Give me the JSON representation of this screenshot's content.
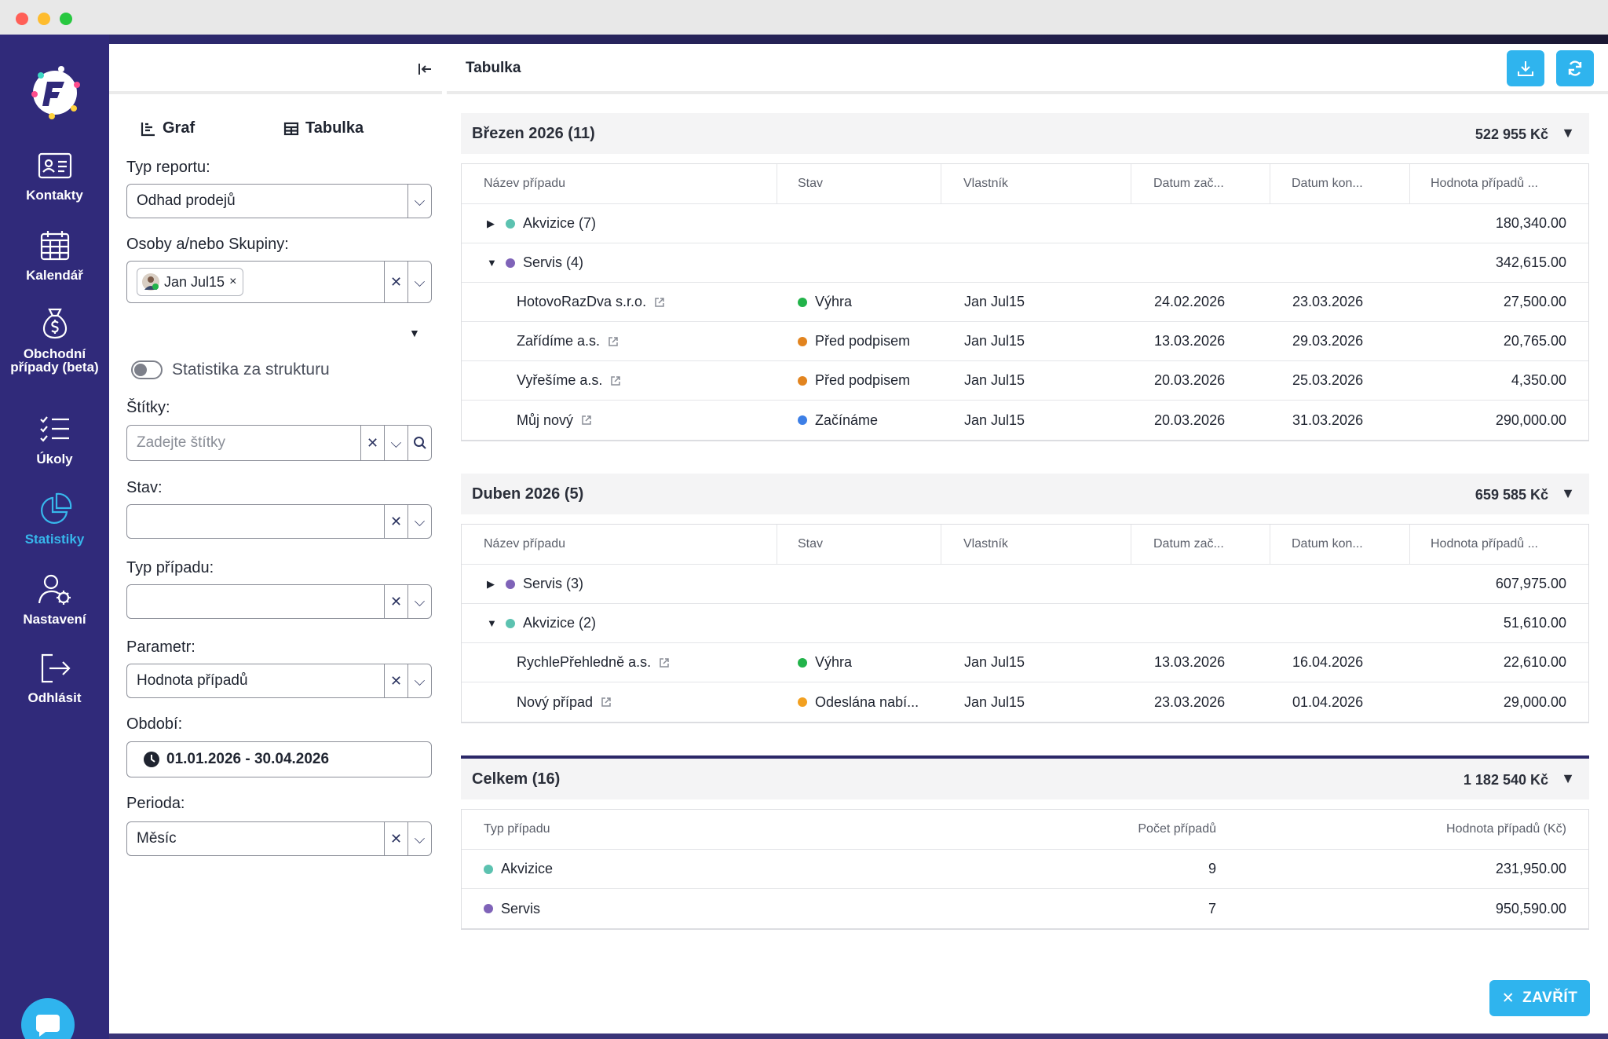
{
  "nav": {
    "items": [
      {
        "label": "Kontakty",
        "icon": "contact-card-icon"
      },
      {
        "label": "Kalendář",
        "icon": "calendar-icon"
      },
      {
        "label": "Obchodní případy (beta)",
        "icon": "money-bag-icon"
      },
      {
        "label": "Úkoly",
        "icon": "checklist-icon"
      },
      {
        "label": "Statistiky",
        "icon": "pie-chart-icon"
      },
      {
        "label": "Nastavení",
        "icon": "user-gear-icon"
      },
      {
        "label": "Odhlásit",
        "icon": "logout-icon"
      }
    ],
    "active": "Statistiky"
  },
  "filters": {
    "view_tabs": {
      "graph": "Graf",
      "table": "Tabulka"
    },
    "report_type": {
      "label": "Typ reportu:",
      "value": "Odhad prodejů"
    },
    "persons": {
      "label": "Osoby a/nebo Skupiny:",
      "chip": "Jan Jul15"
    },
    "structure_toggle": {
      "label": "Statistika za strukturu",
      "on": false
    },
    "tags": {
      "label": "Štítky:",
      "placeholder": "Zadejte štítky"
    },
    "status": {
      "label": "Stav:",
      "value": ""
    },
    "case_type": {
      "label": "Typ případu:",
      "value": ""
    },
    "parameter": {
      "label": "Parametr:",
      "value": "Hodnota případů"
    },
    "period": {
      "label": "Období:",
      "value": "01.01.2026 - 30.04.2026"
    },
    "periodicity": {
      "label": "Perioda:",
      "value": "Měsíc"
    }
  },
  "main": {
    "title": "Tabulka",
    "columns": [
      "Název případu",
      "Stav",
      "Vlastník",
      "Datum zač...",
      "Datum kon...",
      "Hodnota případů ..."
    ],
    "groups": [
      {
        "title": "Březen 2026 (11)",
        "sum": "522 955 Kč",
        "rows": [
          {
            "type": "group",
            "expanded": false,
            "name": "Akvizice (7)",
            "color": "#5cc2b0",
            "value": "180,340.00"
          },
          {
            "type": "group",
            "expanded": true,
            "name": "Servis (4)",
            "color": "#7f63b8",
            "value": "342,615.00"
          },
          {
            "type": "item",
            "name": "HotovoRazDva s.r.o.",
            "status": "Výhra",
            "status_color": "#22b34a",
            "owner": "Jan Jul15",
            "start": "24.02.2026",
            "end": "23.03.2026",
            "value": "27,500.00"
          },
          {
            "type": "item",
            "name": "Zařídíme a.s.",
            "status": "Před podpisem",
            "status_color": "#e2841f",
            "owner": "Jan Jul15",
            "start": "13.03.2026",
            "end": "29.03.2026",
            "value": "20,765.00"
          },
          {
            "type": "item",
            "name": "Vyřešíme a.s.",
            "status": "Před podpisem",
            "status_color": "#e2841f",
            "owner": "Jan Jul15",
            "start": "20.03.2026",
            "end": "25.03.2026",
            "value": "4,350.00"
          },
          {
            "type": "item",
            "name": "Můj nový",
            "status": "Začínáme",
            "status_color": "#3d7fe6",
            "owner": "Jan Jul15",
            "start": "20.03.2026",
            "end": "31.03.2026",
            "value": "290,000.00"
          }
        ]
      },
      {
        "title": "Duben 2026 (5)",
        "sum": "659 585 Kč",
        "rows": [
          {
            "type": "group",
            "expanded": false,
            "name": "Servis (3)",
            "color": "#7f63b8",
            "value": "607,975.00"
          },
          {
            "type": "group",
            "expanded": true,
            "name": "Akvizice (2)",
            "color": "#5cc2b0",
            "value": "51,610.00"
          },
          {
            "type": "item",
            "name": "RychlePřehledně a.s.",
            "status": "Výhra",
            "status_color": "#22b34a",
            "owner": "Jan Jul15",
            "start": "13.03.2026",
            "end": "16.04.2026",
            "value": "22,610.00"
          },
          {
            "type": "item",
            "name": "Nový případ",
            "status": "Odeslána nabí...",
            "status_color": "#f2a020",
            "owner": "Jan Jul15",
            "start": "23.03.2026",
            "end": "01.04.2026",
            "value": "29,000.00"
          }
        ]
      }
    ],
    "total": {
      "title": "Celkem (16)",
      "sum": "1 182 540 Kč",
      "columns": [
        "Typ případu",
        "Počet případů",
        "Hodnota případů (Kč)"
      ],
      "rows": [
        {
          "name": "Akvizice",
          "color": "#5cc2b0",
          "count": "9",
          "value": "231,950.00"
        },
        {
          "name": "Servis",
          "color": "#7f63b8",
          "count": "7",
          "value": "950,590.00"
        }
      ]
    },
    "close_label": "ZAVŘÍT"
  }
}
